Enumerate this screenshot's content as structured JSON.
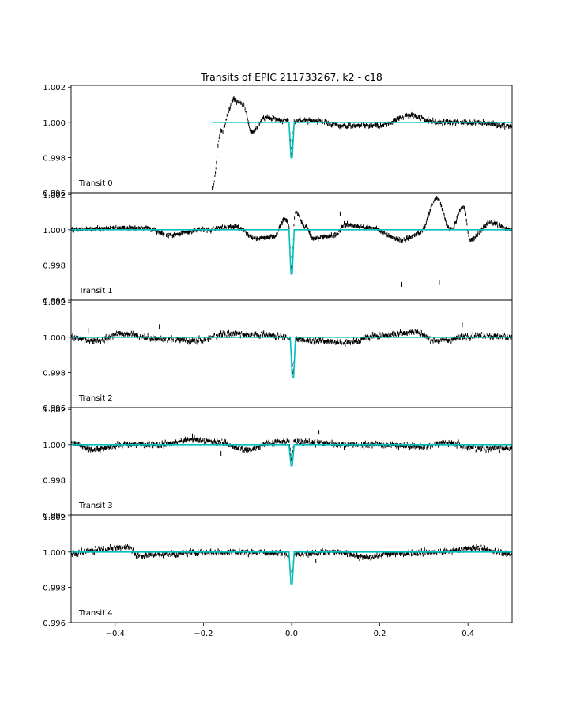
{
  "chart_data": {
    "type": "line",
    "title": "Transits of EPIC 211733267, k2 - c18",
    "xlabel": "",
    "ylabel": "",
    "xlim": [
      -0.5,
      0.5
    ],
    "ylim": [
      0.996,
      1.0021
    ],
    "x_ticks": [
      -0.4,
      -0.2,
      0.0,
      0.2,
      0.4
    ],
    "x_tick_labels": [
      "−0.4",
      "−0.2",
      "0.0",
      "0.2",
      "0.4"
    ],
    "y_ticks": [
      0.996,
      0.998,
      1.0,
      1.002
    ],
    "y_tick_labels": [
      "0.996",
      "0.998",
      "1.000",
      "1.002"
    ],
    "colors": {
      "data": "#000000",
      "model": "#00bfbf"
    },
    "panels": [
      {
        "label": "Transit 0",
        "data_range": [
          -0.18,
          0.5
        ],
        "model_range": [
          -0.18,
          0.5
        ],
        "transit_center": 0.0,
        "transit_depth": 0.002,
        "noise": 0.0001,
        "trend": [
          [
            -0.18,
            0.9962
          ],
          [
            -0.16,
            0.9995
          ],
          [
            -0.13,
            1.0013
          ],
          [
            -0.11,
            1.001
          ],
          [
            -0.09,
            0.9994
          ],
          [
            -0.06,
            1.0003
          ],
          [
            -0.02,
            1.0001
          ],
          [
            0.05,
            1.0001
          ],
          [
            0.12,
            0.9998
          ],
          [
            0.2,
            0.9998
          ],
          [
            0.27,
            1.0004
          ],
          [
            0.33,
            1.0
          ],
          [
            0.42,
            1.0
          ],
          [
            0.5,
            0.9998
          ]
        ],
        "outliers": []
      },
      {
        "label": "Transit 1",
        "data_range": [
          -0.5,
          0.5
        ],
        "model_range": [
          -0.5,
          0.5
        ],
        "transit_center": 0.0,
        "transit_depth": 0.0025,
        "noise": 8e-05,
        "trend": [
          [
            -0.5,
            1.0
          ],
          [
            -0.4,
            1.0001
          ],
          [
            -0.33,
            1.0001
          ],
          [
            -0.28,
            0.9997
          ],
          [
            -0.2,
            1.0
          ],
          [
            -0.13,
            1.0002
          ],
          [
            -0.08,
            0.9995
          ],
          [
            -0.04,
            0.9996
          ],
          [
            -0.015,
            1.0006
          ],
          [
            0.0,
            1.0
          ],
          [
            0.01,
            1.001
          ],
          [
            0.03,
            1.0002
          ],
          [
            0.05,
            0.9995
          ],
          [
            0.1,
            0.9997
          ],
          [
            0.12,
            1.0003
          ],
          [
            0.18,
            1.0001
          ],
          [
            0.25,
            0.9994
          ],
          [
            0.29,
            0.9998
          ],
          [
            0.33,
            1.0018
          ],
          [
            0.36,
            1.0
          ],
          [
            0.39,
            1.0013
          ],
          [
            0.405,
            0.9994
          ],
          [
            0.45,
            1.0004
          ],
          [
            0.5,
            1.0
          ]
        ],
        "outliers": [
          [
            0.25,
            0.9969
          ],
          [
            0.335,
            0.997
          ],
          [
            0.11,
            1.0009
          ]
        ]
      },
      {
        "label": "Transit 2",
        "data_range": [
          -0.5,
          0.5
        ],
        "model_range": [
          -0.5,
          0.5
        ],
        "transit_center": 0.003,
        "transit_depth": 0.0023,
        "noise": 0.00012,
        "trend": [
          [
            -0.5,
            1.0
          ],
          [
            -0.45,
            0.9998
          ],
          [
            -0.38,
            1.0002
          ],
          [
            -0.3,
            0.9999
          ],
          [
            -0.22,
            0.9998
          ],
          [
            -0.14,
            1.0002
          ],
          [
            -0.05,
            1.0001
          ],
          [
            0.05,
            0.9998
          ],
          [
            0.12,
            0.9997
          ],
          [
            0.2,
            1.0001
          ],
          [
            0.28,
            1.0003
          ],
          [
            0.33,
            0.9998
          ],
          [
            0.42,
            1.0001
          ],
          [
            0.5,
            1.0
          ]
        ],
        "outliers": [
          [
            -0.46,
            1.0004
          ],
          [
            -0.3,
            1.0006
          ],
          [
            0.387,
            1.0007
          ]
        ]
      },
      {
        "label": "Transit 3",
        "data_range": [
          -0.5,
          0.5
        ],
        "model_range": [
          -0.5,
          0.5
        ],
        "transit_center": 0.0,
        "transit_depth": 0.0012,
        "noise": 0.00012,
        "trend": [
          [
            -0.5,
            1.0001
          ],
          [
            -0.45,
            0.9997
          ],
          [
            -0.38,
            1.0
          ],
          [
            -0.3,
            1.0
          ],
          [
            -0.22,
            1.0003
          ],
          [
            -0.16,
            1.0001
          ],
          [
            -0.1,
            0.9997
          ],
          [
            -0.05,
            1.0001
          ],
          [
            0.0,
            1.0002
          ],
          [
            0.06,
            1.0001
          ],
          [
            0.12,
            1.0
          ],
          [
            0.2,
            1.0
          ],
          [
            0.3,
            0.9999
          ],
          [
            0.35,
            1.0001
          ],
          [
            0.42,
            0.9998
          ],
          [
            0.5,
            0.9998
          ]
        ],
        "outliers": [
          [
            -0.16,
            0.9995
          ],
          [
            0.062,
            1.0007
          ],
          [
            -0.225,
            1.0005
          ]
        ]
      },
      {
        "label": "Transit 4",
        "data_range": [
          -0.5,
          0.5
        ],
        "model_range": [
          -0.5,
          0.5
        ],
        "transit_center": 0.0,
        "transit_depth": 0.0018,
        "noise": 0.00012,
        "trend": [
          [
            -0.5,
            0.9999
          ],
          [
            -0.42,
            1.0002
          ],
          [
            -0.37,
            1.0003
          ],
          [
            -0.35,
            0.9998
          ],
          [
            -0.28,
            0.9999
          ],
          [
            -0.2,
            1.0
          ],
          [
            -0.1,
            1.0
          ],
          [
            0.0,
            0.9999
          ],
          [
            0.1,
            1.0
          ],
          [
            0.17,
            0.9997
          ],
          [
            0.22,
            0.9999
          ],
          [
            0.32,
            1.0
          ],
          [
            0.42,
            1.0002
          ],
          [
            0.5,
            0.9999
          ]
        ],
        "outliers": [
          [
            0.055,
            0.9995
          ]
        ]
      }
    ]
  }
}
